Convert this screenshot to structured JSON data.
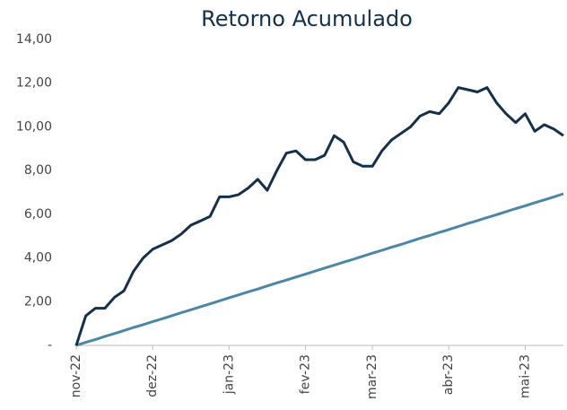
{
  "chart_data": {
    "type": "line",
    "title": "Retorno Acumulado",
    "categories": [
      "nov-22",
      null,
      null,
      null,
      null,
      null,
      null,
      null,
      "dez-22",
      null,
      null,
      null,
      null,
      null,
      null,
      null,
      "jan-23",
      null,
      null,
      null,
      null,
      null,
      null,
      null,
      "fev-23",
      null,
      null,
      null,
      null,
      null,
      null,
      "mar-23",
      null,
      null,
      null,
      null,
      null,
      null,
      null,
      "abr-23",
      null,
      null,
      null,
      null,
      null,
      null,
      null,
      "mai-23",
      null,
      null,
      null,
      null
    ],
    "series": [
      {
        "color": "#14304f",
        "values": [
          0,
          1.35,
          1.7,
          1.7,
          2.2,
          2.5,
          3.4,
          4.0,
          4.4,
          4.6,
          4.8,
          5.1,
          5.5,
          5.7,
          5.9,
          6.8,
          6.8,
          6.9,
          7.2,
          7.6,
          7.1,
          8.0,
          8.8,
          8.9,
          8.5,
          8.5,
          8.7,
          9.6,
          9.3,
          8.4,
          8.2,
          8.2,
          8.9,
          9.4,
          9.7,
          10.0,
          10.5,
          10.7,
          10.6,
          11.1,
          11.8,
          11.7,
          11.6,
          11.8,
          11.1,
          10.6,
          10.2,
          10.6,
          9.8,
          10.1,
          9.9,
          9.6
        ]
      },
      {
        "color": "#4a86a8",
        "values": [
          0,
          0.14,
          0.27,
          0.41,
          0.54,
          0.68,
          0.82,
          0.95,
          1.09,
          1.22,
          1.36,
          1.5,
          1.63,
          1.77,
          1.9,
          2.04,
          2.18,
          2.31,
          2.45,
          2.58,
          2.72,
          2.86,
          2.99,
          3.13,
          3.26,
          3.4,
          3.54,
          3.67,
          3.81,
          3.94,
          4.08,
          4.22,
          4.35,
          4.49,
          4.62,
          4.76,
          4.9,
          5.03,
          5.17,
          5.3,
          5.44,
          5.58,
          5.71,
          5.85,
          5.98,
          6.12,
          6.26,
          6.39,
          6.53,
          6.66,
          6.8,
          6.94
        ]
      }
    ],
    "ylim": [
      0,
      14
    ],
    "yticks": [
      {
        "value": 0,
        "label": "-"
      },
      {
        "value": 2,
        "label": "2,00"
      },
      {
        "value": 4,
        "label": "4,00"
      },
      {
        "value": 6,
        "label": "6,00"
      },
      {
        "value": 8,
        "label": "8,00"
      },
      {
        "value": 10,
        "label": "10,00"
      },
      {
        "value": 12,
        "label": "12,00"
      },
      {
        "value": 14,
        "label": "14,00"
      }
    ]
  }
}
